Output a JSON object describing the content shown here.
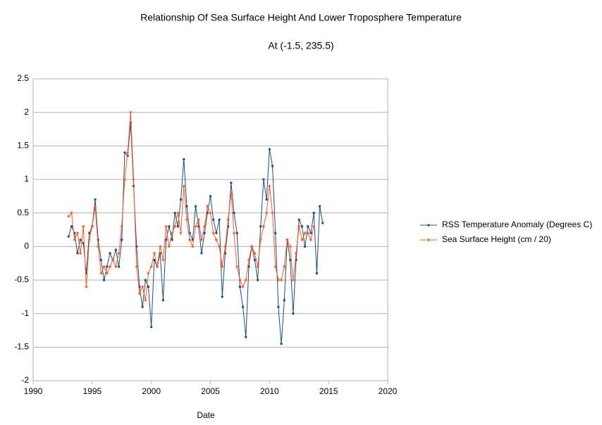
{
  "chart_data": {
    "type": "line",
    "title": "Relationship Of Sea Surface Height And Lower Troposphere Temperature",
    "subtitle": "At (-1.5, 235.5)",
    "x_label": "Date",
    "x": [
      1993.0,
      1993.25,
      1993.5,
      1993.75,
      1994.0,
      1994.25,
      1994.5,
      1994.75,
      1995.0,
      1995.25,
      1995.5,
      1995.75,
      1996.0,
      1996.25,
      1996.5,
      1996.75,
      1997.0,
      1997.25,
      1997.5,
      1997.75,
      1998.0,
      1998.25,
      1998.5,
      1998.75,
      1999.0,
      1999.25,
      1999.5,
      1999.75,
      2000.0,
      2000.25,
      2000.5,
      2000.75,
      2001.0,
      2001.25,
      2001.5,
      2001.75,
      2002.0,
      2002.25,
      2002.5,
      2002.75,
      2003.0,
      2003.25,
      2003.5,
      2003.75,
      2004.0,
      2004.25,
      2004.5,
      2004.75,
      2005.0,
      2005.25,
      2005.5,
      2005.75,
      2006.0,
      2006.25,
      2006.5,
      2006.75,
      2007.0,
      2007.25,
      2007.5,
      2007.75,
      2008.0,
      2008.25,
      2008.5,
      2008.75,
      2009.0,
      2009.25,
      2009.5,
      2009.75,
      2010.0,
      2010.25,
      2010.5,
      2010.75,
      2011.0,
      2011.25,
      2011.5,
      2011.75,
      2012.0,
      2012.25,
      2012.5,
      2012.75,
      2013.0,
      2013.25,
      2013.5,
      2013.75,
      2014.0,
      2014.25,
      2014.5
    ],
    "series": [
      {
        "name": "RSS Temperature Anomaly (Degrees C)",
        "color": "#1b4f7a",
        "marker": "square",
        "values": [
          0.15,
          0.3,
          0.2,
          -0.1,
          0.1,
          0.05,
          -0.4,
          0.2,
          0.3,
          0.7,
          0.1,
          -0.2,
          -0.5,
          -0.3,
          -0.1,
          -0.2,
          -0.05,
          -0.3,
          0.1,
          1.4,
          1.35,
          1.85,
          0.9,
          0.0,
          -0.6,
          -0.9,
          -0.5,
          -0.6,
          -1.2,
          -0.2,
          -0.3,
          -0.1,
          -0.8,
          0.1,
          0.3,
          0.1,
          0.5,
          0.3,
          0.7,
          1.3,
          0.6,
          0.2,
          0.1,
          0.6,
          0.3,
          -0.1,
          0.2,
          0.5,
          0.75,
          0.4,
          0.2,
          0.4,
          -0.75,
          -0.1,
          0.3,
          0.95,
          0.5,
          0.2,
          -0.6,
          -0.9,
          -1.35,
          -0.3,
          0.0,
          -0.2,
          -0.5,
          0.3,
          1.0,
          0.7,
          1.45,
          1.2,
          0.2,
          -0.9,
          -1.45,
          -0.8,
          0.1,
          -0.2,
          -1.0,
          -0.2,
          0.4,
          0.3,
          0.0,
          0.3,
          0.2,
          0.5,
          -0.4,
          0.6,
          0.35
        ]
      },
      {
        "name": "Sea Surface Height (cm / 20)",
        "color": "#ff5a1f",
        "marker": "diamond",
        "values": [
          0.45,
          0.5,
          0.1,
          0.2,
          -0.1,
          0.3,
          -0.6,
          0.1,
          0.3,
          0.6,
          0.0,
          -0.4,
          -0.3,
          -0.4,
          -0.3,
          -0.2,
          -0.3,
          -0.1,
          0.3,
          1.0,
          1.4,
          2.0,
          1.0,
          -0.3,
          -0.7,
          -0.6,
          -0.8,
          -0.4,
          -0.3,
          -0.1,
          -0.3,
          0.0,
          -0.2,
          0.3,
          0.0,
          0.2,
          0.3,
          0.5,
          0.2,
          0.9,
          0.4,
          0.1,
          0.0,
          0.3,
          0.4,
          0.1,
          0.3,
          0.6,
          0.5,
          0.2,
          0.1,
          0.0,
          -0.3,
          0.0,
          0.4,
          0.8,
          0.2,
          -0.3,
          -0.5,
          -0.6,
          -0.5,
          -0.2,
          0.0,
          -0.1,
          -0.3,
          0.1,
          0.3,
          0.5,
          0.9,
          0.5,
          -0.3,
          -0.5,
          -0.5,
          -0.3,
          0.1,
          0.0,
          -0.5,
          -0.1,
          0.3,
          0.1,
          0.2,
          0.2,
          0.1,
          0.3,
          null,
          null,
          null
        ]
      }
    ],
    "xlim": [
      1990,
      2020
    ],
    "xticks": [
      1990,
      1995,
      2000,
      2005,
      2010,
      2015,
      2020
    ],
    "ylim": [
      -2,
      2.5
    ],
    "yticks": [
      -2,
      -1.5,
      -1,
      -0.5,
      0,
      0.5,
      1,
      1.5,
      2,
      2.5
    ],
    "grid": true,
    "legend": "right"
  }
}
